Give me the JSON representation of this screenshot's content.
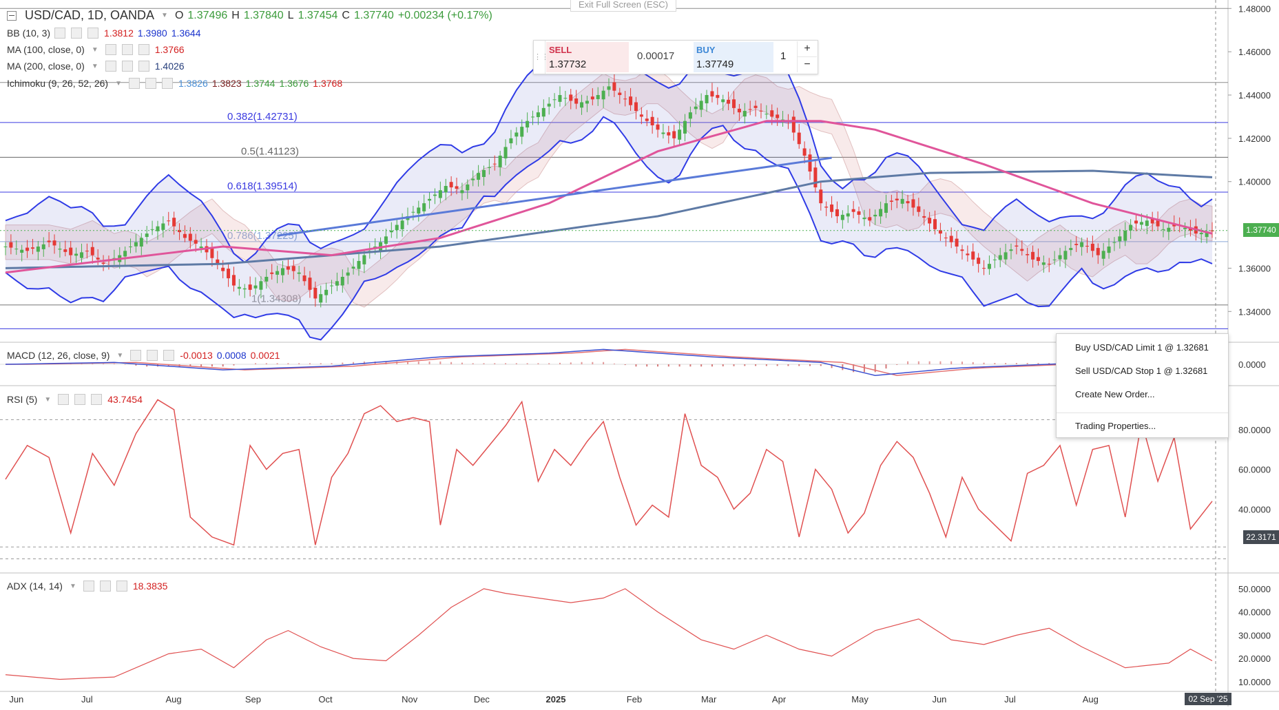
{
  "symbol_header": {
    "title": "USD/CAD, 1D, OANDA",
    "o_label": "O",
    "o_value": "1.37496",
    "h_label": "H",
    "h_value": "1.37840",
    "l_label": "L",
    "l_value": "1.37454",
    "c_label": "C",
    "c_value": "1.37740",
    "change": "+0.00234 (+0.17%)"
  },
  "indicators": {
    "bb": {
      "name": "BB (10, 3)",
      "values": [
        "1.3812",
        "1.3980",
        "1.3644"
      ]
    },
    "ma100": {
      "name": "MA (100, close, 0)",
      "value": "1.3766"
    },
    "ma200": {
      "name": "MA (200, close, 0)",
      "value": "1.4026"
    },
    "ichimoku": {
      "name": "Ichimoku (9, 26, 52, 26)",
      "values": [
        "1.3826",
        "1.3823",
        "1.3744",
        "1.3676",
        "1.3768"
      ]
    },
    "macd": {
      "name": "MACD (12, 26, close, 9)",
      "values": [
        "-0.0013",
        "0.0008",
        "0.0021"
      ]
    },
    "rsi": {
      "name": "RSI (5)",
      "value": "43.7454"
    },
    "adx": {
      "name": "ADX (14, 14)",
      "value": "18.3835"
    }
  },
  "fib_labels": {
    "f0382": "0.382(1.42731)",
    "f05": "0.5(1.41123)",
    "f0618": "0.618(1.39514)",
    "f0786": "0.786(1.37225)",
    "f1": "1(1.34308)"
  },
  "trade_panel": {
    "sell_label": "SELL",
    "sell_price": "1.37732",
    "spread": "0.00017",
    "buy_label": "BUY",
    "buy_price": "1.37749",
    "quantity": "1",
    "plus": "+",
    "minus": "−"
  },
  "exit_fullscreen": "Exit Full Screen (ESC)",
  "context_menu": [
    "Buy USD/CAD Limit 1 @ 1.32681",
    "Sell USD/CAD Stop 1 @ 1.32681",
    "Create New Order...",
    "Trading Properties..."
  ],
  "price_badges": {
    "last": "1.37740",
    "rsi_line": "22.3171"
  },
  "time_label": "02 Sep '25",
  "colors": {
    "candle_up": "#4caf50",
    "candle_down": "#e53935",
    "bb": "#2f3be6",
    "ma100": "#e0559a",
    "ma200": "#5e7aa5",
    "rsi": "#e05050",
    "adx": "#e05050",
    "macd": "#3a4fd0",
    "signal": "#e37070",
    "last_price": "#4caf50"
  },
  "chart_data": [
    {
      "type": "candlestick",
      "title": "USD/CAD, 1D, OANDA",
      "xlabel": "",
      "ylabel": "",
      "x_ticks": [
        "Jun",
        "Jul",
        "Aug",
        "Sep",
        "Oct",
        "Nov",
        "Dec",
        "2025",
        "Feb",
        "Mar",
        "Apr",
        "May",
        "Jun",
        "Jul",
        "Aug"
      ],
      "y_ticks": [
        "1.48000",
        "1.46000",
        "1.44000",
        "1.42000",
        "1.40000",
        "1.36000",
        "1.34000"
      ],
      "ylim": [
        1.328,
        1.482
      ],
      "last_price": 1.3774,
      "series": [
        {
          "name": "Close",
          "points": [
            [
              0,
              1.37
            ],
            [
              4,
              1.368
            ],
            [
              8,
              1.372
            ],
            [
              12,
              1.366
            ],
            [
              15,
              1.368
            ],
            [
              18,
              1.362
            ],
            [
              21,
              1.366
            ],
            [
              24,
              1.372
            ],
            [
              27,
              1.378
            ],
            [
              30,
              1.382
            ],
            [
              33,
              1.374
            ],
            [
              36,
              1.37
            ],
            [
              39,
              1.362
            ],
            [
              42,
              1.352
            ],
            [
              45,
              1.35
            ],
            [
              48,
              1.356
            ],
            [
              51,
              1.36
            ],
            [
              54,
              1.358
            ],
            [
              57,
              1.346
            ],
            [
              60,
              1.352
            ],
            [
              63,
              1.358
            ],
            [
              66,
              1.366
            ],
            [
              69,
              1.372
            ],
            [
              72,
              1.38
            ],
            [
              75,
              1.386
            ],
            [
              78,
              1.392
            ],
            [
              81,
              1.398
            ],
            [
              84,
              1.396
            ],
            [
              87,
              1.404
            ],
            [
              90,
              1.408
            ],
            [
              93,
              1.42
            ],
            [
              96,
              1.428
            ],
            [
              99,
              1.434
            ],
            [
              102,
              1.44
            ],
            [
              105,
              1.436
            ],
            [
              108,
              1.438
            ],
            [
              111,
              1.444
            ],
            [
              114,
              1.438
            ],
            [
              117,
              1.43
            ],
            [
              120,
              1.424
            ],
            [
              123,
              1.42
            ],
            [
              126,
              1.432
            ],
            [
              129,
              1.44
            ],
            [
              132,
              1.438
            ],
            [
              135,
              1.432
            ],
            [
              138,
              1.434
            ],
            [
              141,
              1.43
            ],
            [
              144,
              1.428
            ],
            [
              147,
              1.412
            ],
            [
              150,
              1.39
            ],
            [
              153,
              1.384
            ],
            [
              156,
              1.386
            ],
            [
              159,
              1.382
            ],
            [
              162,
              1.39
            ],
            [
              165,
              1.392
            ],
            [
              168,
              1.386
            ],
            [
              171,
              1.378
            ],
            [
              174,
              1.372
            ],
            [
              177,
              1.366
            ],
            [
              180,
              1.36
            ],
            [
              183,
              1.366
            ],
            [
              186,
              1.37
            ],
            [
              189,
              1.364
            ],
            [
              192,
              1.362
            ],
            [
              195,
              1.368
            ],
            [
              198,
              1.372
            ],
            [
              201,
              1.366
            ],
            [
              204,
              1.372
            ],
            [
              207,
              1.38
            ],
            [
              210,
              1.382
            ],
            [
              213,
              1.378
            ],
            [
              216,
              1.38
            ],
            [
              219,
              1.376
            ],
            [
              222,
              1.377
            ]
          ]
        },
        {
          "name": "MA (100, close, 0)",
          "points": [
            [
              0,
              1.358
            ],
            [
              20,
              1.364
            ],
            [
              40,
              1.37
            ],
            [
              60,
              1.366
            ],
            [
              80,
              1.374
            ],
            [
              100,
              1.39
            ],
            [
              120,
              1.414
            ],
            [
              140,
              1.428
            ],
            [
              150,
              1.428
            ],
            [
              160,
              1.424
            ],
            [
              180,
              1.408
            ],
            [
              200,
              1.39
            ],
            [
              222,
              1.376
            ]
          ]
        },
        {
          "name": "MA (200, close, 0)",
          "points": [
            [
              0,
              1.36
            ],
            [
              40,
              1.362
            ],
            [
              80,
              1.37
            ],
            [
              120,
              1.384
            ],
            [
              150,
              1.4
            ],
            [
              170,
              1.404
            ],
            [
              200,
              1.405
            ],
            [
              222,
              1.402
            ]
          ]
        }
      ],
      "fibonacci": [
        {
          "label": "0.382(1.42731)",
          "value": 1.42731
        },
        {
          "label": "0.5(1.41123)",
          "value": 1.41123
        },
        {
          "label": "0.618(1.39514)",
          "value": 1.39514
        },
        {
          "label": "0.786(1.37225)",
          "value": 1.37225
        },
        {
          "label": "1(1.34308)",
          "value": 1.34308
        }
      ]
    },
    {
      "type": "line",
      "title": "MACD (12, 26, close, 9)",
      "y_ticks": [
        "0.0000"
      ],
      "series": [
        {
          "name": "MACD",
          "points": [
            [
              0,
              0.0
            ],
            [
              20,
              0.001
            ],
            [
              40,
              -0.003
            ],
            [
              60,
              -0.001
            ],
            [
              80,
              0.004
            ],
            [
              100,
              0.006
            ],
            [
              110,
              0.008
            ],
            [
              130,
              0.004
            ],
            [
              150,
              0.001
            ],
            [
              160,
              -0.006
            ],
            [
              175,
              -0.002
            ],
            [
              200,
              0.001
            ],
            [
              222,
              -0.001
            ]
          ]
        }
      ]
    },
    {
      "type": "line",
      "title": "RSI (5)",
      "y_ticks": [
        "80.0000",
        "60.0000",
        "40.0000"
      ],
      "ylim": [
        10,
        100
      ],
      "series": [
        {
          "name": "RSI (5)",
          "points": [
            [
              0,
              55
            ],
            [
              4,
              72
            ],
            [
              8,
              66
            ],
            [
              12,
              28
            ],
            [
              16,
              68
            ],
            [
              20,
              52
            ],
            [
              24,
              78
            ],
            [
              28,
              95
            ],
            [
              31,
              90
            ],
            [
              34,
              36
            ],
            [
              38,
              26
            ],
            [
              42,
              22
            ],
            [
              45,
              72
            ],
            [
              48,
              60
            ],
            [
              51,
              68
            ],
            [
              54,
              70
            ],
            [
              57,
              22
            ],
            [
              60,
              56
            ],
            [
              63,
              68
            ],
            [
              66,
              88
            ],
            [
              69,
              92
            ],
            [
              72,
              84
            ],
            [
              75,
              86
            ],
            [
              78,
              84
            ],
            [
              80,
              32
            ],
            [
              83,
              70
            ],
            [
              86,
              62
            ],
            [
              89,
              72
            ],
            [
              92,
              82
            ],
            [
              95,
              94
            ],
            [
              98,
              54
            ],
            [
              101,
              70
            ],
            [
              104,
              62
            ],
            [
              107,
              74
            ],
            [
              110,
              84
            ],
            [
              113,
              56
            ],
            [
              116,
              32
            ],
            [
              119,
              42
            ],
            [
              122,
              36
            ],
            [
              125,
              88
            ],
            [
              128,
              62
            ],
            [
              131,
              56
            ],
            [
              134,
              40
            ],
            [
              137,
              48
            ],
            [
              140,
              70
            ],
            [
              143,
              64
            ],
            [
              146,
              26
            ],
            [
              149,
              60
            ],
            [
              152,
              50
            ],
            [
              155,
              28
            ],
            [
              158,
              38
            ],
            [
              161,
              62
            ],
            [
              164,
              74
            ],
            [
              167,
              66
            ],
            [
              170,
              48
            ],
            [
              173,
              26
            ],
            [
              176,
              56
            ],
            [
              179,
              40
            ],
            [
              182,
              32
            ],
            [
              185,
              24
            ],
            [
              188,
              58
            ],
            [
              191,
              62
            ],
            [
              194,
              72
            ],
            [
              197,
              42
            ],
            [
              200,
              70
            ],
            [
              203,
              72
            ],
            [
              206,
              36
            ],
            [
              209,
              84
            ],
            [
              212,
              54
            ],
            [
              215,
              76
            ],
            [
              218,
              30
            ],
            [
              222,
              44
            ]
          ]
        }
      ]
    },
    {
      "type": "line",
      "title": "ADX (14, 14)",
      "y_ticks": [
        "50.0000",
        "40.0000",
        "30.0000",
        "20.0000",
        "10.0000"
      ],
      "ylim": [
        7,
        55
      ],
      "series": [
        {
          "name": "ADX (14, 14)",
          "points": [
            [
              0,
              13
            ],
            [
              10,
              11
            ],
            [
              20,
              12
            ],
            [
              30,
              22
            ],
            [
              36,
              24
            ],
            [
              42,
              16
            ],
            [
              48,
              28
            ],
            [
              52,
              32
            ],
            [
              58,
              25
            ],
            [
              64,
              20
            ],
            [
              70,
              19
            ],
            [
              76,
              30
            ],
            [
              82,
              42
            ],
            [
              88,
              50
            ],
            [
              92,
              48
            ],
            [
              98,
              46
            ],
            [
              104,
              44
            ],
            [
              110,
              46
            ],
            [
              114,
              50
            ],
            [
              120,
              40
            ],
            [
              128,
              28
            ],
            [
              134,
              24
            ],
            [
              140,
              30
            ],
            [
              146,
              24
            ],
            [
              152,
              21
            ],
            [
              160,
              32
            ],
            [
              168,
              37
            ],
            [
              174,
              28
            ],
            [
              180,
              26
            ],
            [
              186,
              30
            ],
            [
              192,
              33
            ],
            [
              198,
              25
            ],
            [
              206,
              16
            ],
            [
              214,
              18
            ],
            [
              218,
              24
            ],
            [
              222,
              19
            ]
          ]
        }
      ]
    }
  ]
}
